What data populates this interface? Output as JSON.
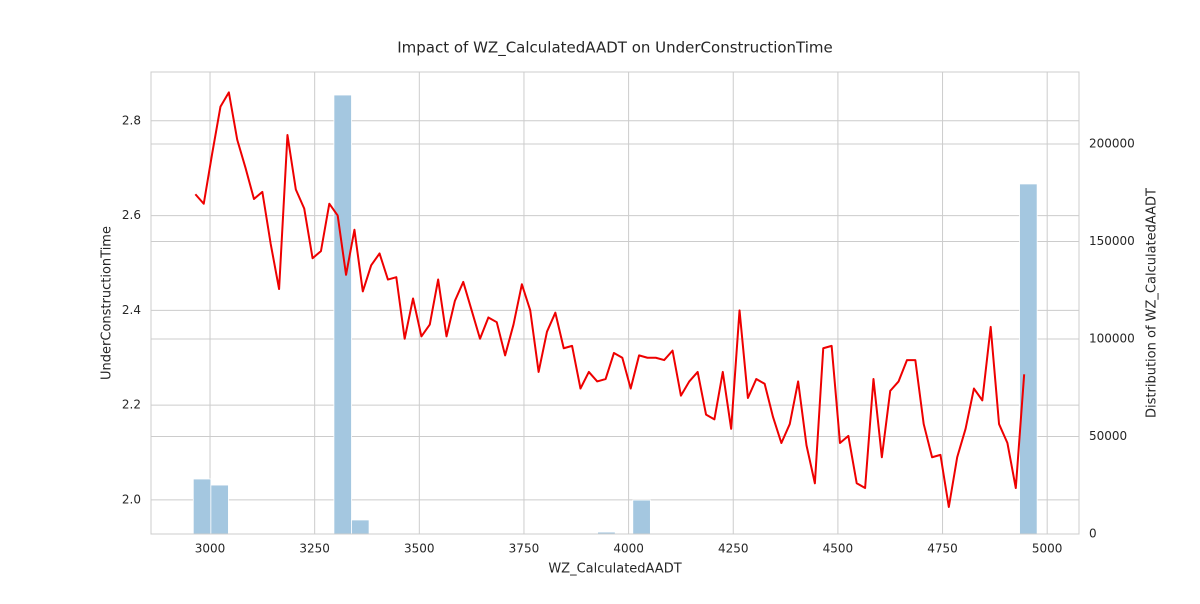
{
  "chart_data": {
    "title": "Impact of WZ_CalculatedAADT on UnderConstructionTime",
    "x_label": "WZ_CalculatedAADT",
    "y_label": "UnderConstructionTime",
    "y2_label": "Distribution of WZ_CalculatedAADT",
    "xlim": [
      2859,
      5076
    ],
    "xticks": [
      3000,
      3250,
      3500,
      3750,
      4000,
      4250,
      4500,
      4750,
      5000
    ],
    "ylim": [
      1.928,
      2.903
    ],
    "yticks": [
      {
        "value": 2,
        "label": "2.0"
      },
      2.2,
      2.4,
      2.6,
      {
        "value": 2.8,
        "label": "2.8"
      }
    ],
    "y2lim": [
      0,
      236900
    ],
    "y2ticks": [
      0,
      50000,
      100000,
      150000,
      200000
    ],
    "grid": true,
    "layers": [
      {
        "type": "histogram",
        "axis": "y2",
        "color": "#a4c7e0",
        "bins": [
          2960,
          3002,
          3044,
          3086,
          3128,
          3170,
          3212,
          3254,
          3296,
          3338,
          3380,
          3422,
          3464,
          3506,
          3548,
          3590,
          3632,
          3674,
          3716,
          3758,
          3800,
          3842,
          3884,
          3926,
          3968,
          4010,
          4052,
          4094,
          4136,
          4178,
          4220,
          4262,
          4304,
          4346,
          4388,
          4430,
          4472,
          4514,
          4556,
          4598,
          4640,
          4682,
          4724,
          4766,
          4808,
          4850,
          4892,
          4934,
          4976
        ],
        "counts": [
          28200,
          25100,
          0,
          0,
          0,
          0,
          0,
          0,
          225100,
          7200,
          0,
          0,
          0,
          0,
          0,
          0,
          0,
          0,
          0,
          0,
          0,
          0,
          0,
          1000,
          0,
          17400,
          0,
          0,
          0,
          0,
          0,
          0,
          0,
          0,
          0,
          0,
          0,
          0,
          0,
          0,
          0,
          0,
          0,
          0,
          0,
          0,
          0,
          179500
        ]
      },
      {
        "type": "line",
        "color": "#ee0000",
        "x": [
          2965,
          2985,
          3005,
          3025,
          3045,
          3065,
          3085,
          3105,
          3125,
          3145,
          3165,
          3185,
          3205,
          3225,
          3245,
          3265,
          3285,
          3305,
          3325,
          3345,
          3365,
          3385,
          3405,
          3425,
          3445,
          3465,
          3485,
          3505,
          3525,
          3545,
          3565,
          3585,
          3605,
          3625,
          3645,
          3665,
          3685,
          3705,
          3725,
          3745,
          3765,
          3785,
          3805,
          3825,
          3845,
          3865,
          3885,
          3905,
          3925,
          3945,
          3965,
          3985,
          4005,
          4025,
          4045,
          4065,
          4085,
          4105,
          4125,
          4145,
          4165,
          4185,
          4205,
          4225,
          4245,
          4265,
          4285,
          4305,
          4325,
          4345,
          4365,
          4385,
          4405,
          4425,
          4445,
          4465,
          4485,
          4505,
          4525,
          4545,
          4565,
          4585,
          4605,
          4625,
          4645,
          4665,
          4685,
          4705,
          4725,
          4745,
          4765,
          4785,
          4805,
          4825,
          4845,
          4865,
          4885,
          4905,
          4925,
          4945
        ],
        "values": [
          2.645,
          2.625,
          2.73,
          2.83,
          2.86,
          2.76,
          2.7,
          2.635,
          2.65,
          2.54,
          2.445,
          2.77,
          2.655,
          2.615,
          2.51,
          2.525,
          2.625,
          2.6,
          2.475,
          2.57,
          2.44,
          2.495,
          2.52,
          2.465,
          2.47,
          2.34,
          2.425,
          2.345,
          2.37,
          2.465,
          2.345,
          2.42,
          2.46,
          2.4,
          2.34,
          2.385,
          2.375,
          2.305,
          2.37,
          2.455,
          2.4,
          2.27,
          2.355,
          2.395,
          2.32,
          2.325,
          2.235,
          2.27,
          2.25,
          2.255,
          2.31,
          2.3,
          2.235,
          2.305,
          2.3,
          2.3,
          2.295,
          2.315,
          2.22,
          2.25,
          2.27,
          2.18,
          2.17,
          2.27,
          2.15,
          2.4,
          2.215,
          2.255,
          2.245,
          2.175,
          2.12,
          2.16,
          2.25,
          2.115,
          2.035,
          2.32,
          2.325,
          2.12,
          2.135,
          2.035,
          2.025,
          2.255,
          2.09,
          2.23,
          2.25,
          2.295,
          2.295,
          2.16,
          2.09,
          2.095,
          1.985,
          2.09,
          2.15,
          2.235,
          2.21,
          2.365,
          2.16,
          2.12,
          2.025,
          2.265
        ]
      }
    ]
  }
}
